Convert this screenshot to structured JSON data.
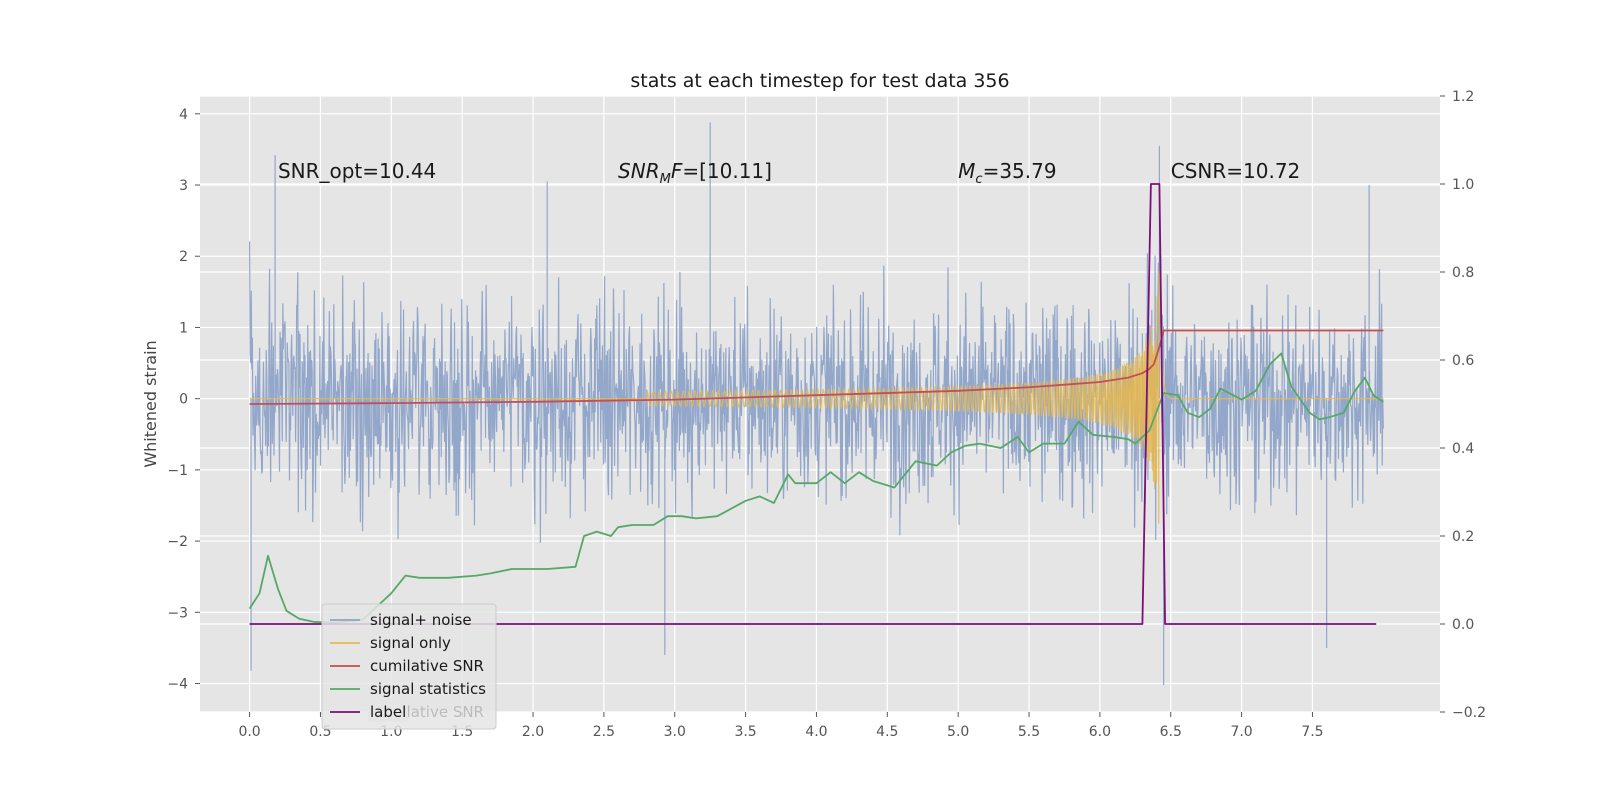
{
  "chart_data": {
    "type": "line",
    "title": "stats at each timestep for test data 356",
    "ylabel": "Whitened strain",
    "xlim": [
      -0.35,
      8.4
    ],
    "ylim": [
      -4.4,
      4.25
    ],
    "y2lim": [
      -0.2,
      1.2
    ],
    "xticks": [
      0.0,
      0.5,
      1.0,
      1.5,
      2.0,
      2.5,
      3.0,
      3.5,
      4.0,
      4.5,
      5.0,
      5.5,
      6.0,
      6.5,
      7.0,
      7.5
    ],
    "xtick_labels": [
      "0.0",
      "0.5",
      "1.0",
      "1.5",
      "2.0",
      "2.5",
      "3.0",
      "3.5",
      "4.0",
      "4.5",
      "5.0",
      "5.5",
      "6.0",
      "6.5",
      "7.0",
      "7.5"
    ],
    "yticks": [
      -4,
      -3,
      -2,
      -1,
      0,
      1,
      2,
      3,
      4
    ],
    "ytick_labels": [
      "−4",
      "−3",
      "−2",
      "−1",
      "0",
      "1",
      "2",
      "3",
      "4"
    ],
    "y2ticks": [
      -0.2,
      0.0,
      0.2,
      0.4,
      0.6,
      0.8,
      1.0,
      1.2
    ],
    "y2tick_labels": [
      "−0.2",
      "0.0",
      "0.2",
      "0.4",
      "0.6",
      "0.8",
      "1.0",
      "1.2"
    ],
    "grid": true,
    "legend_position": "lower-left",
    "annotations": [
      {
        "text": "SNR_opt=10.44",
        "x": 0.2,
        "y": 3.1
      },
      {
        "text": "SNRMF=[10.11]",
        "x": 2.6,
        "y": 3.1
      },
      {
        "text": "Mc=35.79",
        "x": 5.0,
        "y": 3.1
      },
      {
        "text": "CSNR=10.72",
        "x": 6.5,
        "y": 3.1
      }
    ],
    "series": [
      {
        "name": "signal+ noise",
        "axis": "left",
        "color": "#8ea3c8",
        "x_range": [
          0.0,
          8.0
        ],
        "envelope": {
          "upper_typical": 1.6,
          "lower_typical": -1.6,
          "max": 3.9,
          "min": -4.0
        },
        "spikes": [
          {
            "x": 0.01,
            "y": -3.82
          },
          {
            "x": 0.18,
            "y": 3.42
          },
          {
            "x": 2.93,
            "y": -3.6
          },
          {
            "x": 3.25,
            "y": 3.88
          },
          {
            "x": 2.1,
            "y": 3.05
          },
          {
            "x": 6.42,
            "y": 3.55
          },
          {
            "x": 6.45,
            "y": -4.02
          },
          {
            "x": 7.6,
            "y": -3.5
          },
          {
            "x": 7.9,
            "y": 3.0
          }
        ]
      },
      {
        "name": "signal only",
        "axis": "left",
        "color": "#e8b84c",
        "x_range": [
          0.0,
          8.0
        ],
        "chirp_start": 2.8,
        "merger_x": 6.42,
        "peak_amplitude": 2.3
      },
      {
        "name": "cumilative SNR",
        "axis": "right",
        "color": "#c44e52",
        "x": [
          0.0,
          1.0,
          2.0,
          3.0,
          4.0,
          5.0,
          5.5,
          5.8,
          6.0,
          6.2,
          6.3,
          6.35,
          6.38,
          6.4,
          6.42,
          6.45,
          8.0
        ],
        "values": [
          0.5,
          0.502,
          0.505,
          0.51,
          0.52,
          0.53,
          0.538,
          0.545,
          0.55,
          0.56,
          0.57,
          0.58,
          0.59,
          0.61,
          0.63,
          0.667,
          0.667
        ]
      },
      {
        "name": "signal statistics",
        "axis": "right",
        "color": "#55a868",
        "x": [
          0.0,
          0.07,
          0.13,
          0.2,
          0.26,
          0.35,
          0.45,
          0.6,
          0.8,
          1.0,
          1.1,
          1.2,
          1.4,
          1.6,
          1.7,
          1.85,
          2.0,
          2.1,
          2.3,
          2.36,
          2.45,
          2.55,
          2.6,
          2.7,
          2.85,
          2.95,
          3.05,
          3.15,
          3.3,
          3.5,
          3.6,
          3.7,
          3.8,
          3.85,
          4.0,
          4.1,
          4.2,
          4.3,
          4.4,
          4.55,
          4.7,
          4.85,
          4.95,
          5.05,
          5.15,
          5.3,
          5.42,
          5.5,
          5.6,
          5.75,
          5.85,
          5.95,
          6.1,
          6.2,
          6.25,
          6.35,
          6.45,
          6.55,
          6.62,
          6.7,
          6.78,
          6.85,
          7.0,
          7.1,
          7.2,
          7.28,
          7.35,
          7.48,
          7.55,
          7.62,
          7.72,
          7.8,
          7.87,
          7.93,
          8.0
        ],
        "values": [
          0.035,
          0.07,
          0.155,
          0.08,
          0.03,
          0.012,
          0.005,
          0.003,
          0.01,
          0.07,
          0.11,
          0.105,
          0.105,
          0.11,
          0.115,
          0.125,
          0.125,
          0.125,
          0.13,
          0.2,
          0.21,
          0.2,
          0.22,
          0.225,
          0.225,
          0.245,
          0.245,
          0.24,
          0.245,
          0.28,
          0.29,
          0.275,
          0.34,
          0.32,
          0.32,
          0.345,
          0.32,
          0.345,
          0.325,
          0.31,
          0.37,
          0.36,
          0.39,
          0.405,
          0.41,
          0.4,
          0.425,
          0.39,
          0.41,
          0.41,
          0.46,
          0.43,
          0.425,
          0.42,
          0.41,
          0.44,
          0.525,
          0.52,
          0.48,
          0.47,
          0.49,
          0.535,
          0.51,
          0.53,
          0.59,
          0.615,
          0.54,
          0.48,
          0.465,
          0.47,
          0.48,
          0.53,
          0.56,
          0.52,
          0.505
        ]
      },
      {
        "name": "label",
        "axis": "right",
        "color": "#7b0f7b",
        "x": [
          0.0,
          6.3,
          6.36,
          6.42,
          6.46,
          6.52,
          7.95
        ],
        "values": [
          0.0,
          0.0,
          1.0,
          1.0,
          0.0,
          0.0,
          0.0
        ]
      }
    ],
    "legend_entries": [
      "signal+ noise",
      "signal only",
      "cumilative SNR",
      "signal statistics",
      "label"
    ],
    "legend_hidden_text": "cumilative SNR"
  }
}
